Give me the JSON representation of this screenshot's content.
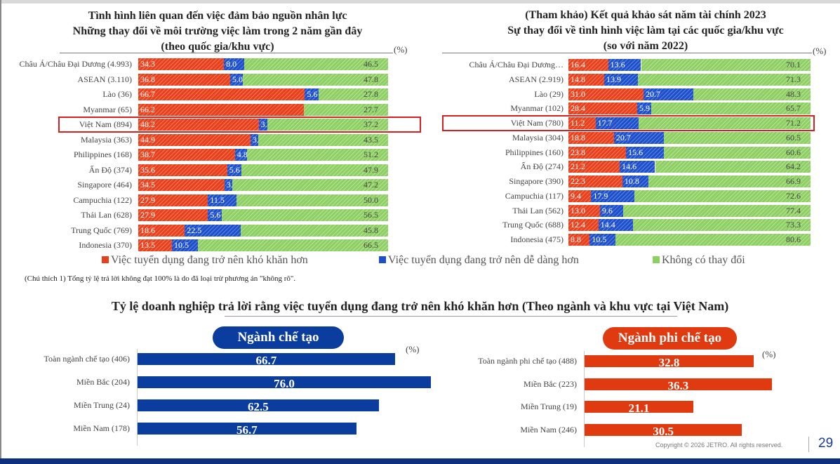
{
  "colors": {
    "hard": "#e8401c",
    "easy": "#1c4fc9",
    "nochange": "#8dcf62",
    "manufacturing": "#0b3d9e",
    "non_manufacturing": "#e03a10",
    "highlight": "#d62020"
  },
  "legend": [
    "Việc tuyển dụng đang trở nên khó khăn hơn",
    "Việc tuyển dụng đang trở nên dễ dàng hơn",
    "Không có thay đổi"
  ],
  "note": "(Chú thích 1) Tổng tỷ lệ trả lời không đạt 100% là do đã loại trừ phương án \"không rõ\".",
  "bottom_title": "Tỷ lệ doanh nghiệp trả lời rằng việc tuyển dụng đang trở nên khó khăn hơn (Theo ngành và khu vực tại Việt Nam)",
  "footer": {
    "copyright": "Copyright © 2026 JETRO. All rights reserved.",
    "page": "29"
  },
  "chart_data": [
    {
      "type": "bar",
      "stacked": true,
      "orientation": "horizontal",
      "unit": "(%)",
      "title": [
        "Tình hình liên quan đến việc đảm bảo nguồn nhân lực",
        "Những thay đổi về môi trường việc làm trong 2 năm gần đây",
        "(theo quốc gia/khu vực)"
      ],
      "highlight": "Việt Nam (894)",
      "categories": [
        "Châu Á/Châu Đại Dương (4.993)",
        "ASEAN (3.110)",
        "Lào (36)",
        "Myanmar (65)",
        "Việt Nam (894)",
        "Malaysia (363)",
        "Philippines (168)",
        "Ấn Độ (374)",
        "Singapore (464)",
        "Campuchia (122)",
        "Thái Lan (628)",
        "Trung Quốc (769)",
        "Indonesia (370)"
      ],
      "series": [
        {
          "name": "Việc tuyển dụng đang trở nên khó khăn hơn",
          "values": [
            34.3,
            36.8,
            66.7,
            66.2,
            48.2,
            44.9,
            38.7,
            35.6,
            34.5,
            27.9,
            27.9,
            18.6,
            13.5
          ]
        },
        {
          "name": "Việc tuyển dụng đang trở nên dễ dàng hơn",
          "values": [
            8.0,
            5.0,
            5.6,
            null,
            3.6,
            3.0,
            4.8,
            5.6,
            3.2,
            11.5,
            5.6,
            22.5,
            10.5
          ]
        },
        {
          "name": "Không có thay đổi",
          "values": [
            46.5,
            47.8,
            27.8,
            27.7,
            37.2,
            43.5,
            51.2,
            47.9,
            47.2,
            50.0,
            56.5,
            45.8,
            66.5
          ]
        }
      ]
    },
    {
      "type": "bar",
      "stacked": true,
      "orientation": "horizontal",
      "unit": "(%)",
      "title": [
        "(Tham khảo) Kết quả khảo sát năm tài chính 2023",
        "Sự thay đổi về tình hình việc làm tại các quốc gia/khu vực",
        "(so với năm 2022)"
      ],
      "highlight": "Việt Nam (780)",
      "categories": [
        "Châu Á/Châu Đại Dương…",
        "ASEAN (2.919)",
        "Lào (29)",
        "Myanmar (102)",
        "Việt Nam (780)",
        "Malaysia (304)",
        "Philippines (160)",
        "Ấn Độ (274)",
        "Singapore (390)",
        "Campuchia (117)",
        "Thái Lan (562)",
        "Trung Quốc (688)",
        "Indonesia (475)"
      ],
      "series": [
        {
          "name": "Việc tuyển dụng đang trở nên khó khăn hơn",
          "values": [
            16.4,
            14.8,
            31.0,
            28.4,
            11.2,
            18.8,
            23.8,
            21.2,
            22.3,
            9.4,
            13.0,
            12.4,
            8.8
          ]
        },
        {
          "name": "Việc tuyển dụng đang trở nên dễ dàng hơn",
          "values": [
            13.6,
            13.9,
            20.7,
            5.9,
            17.7,
            20.7,
            15.6,
            14.6,
            10.8,
            17.9,
            9.6,
            14.4,
            10.5
          ]
        },
        {
          "name": "Không có thay đổi",
          "values": [
            70.1,
            71.3,
            48.3,
            65.7,
            71.2,
            60.5,
            60.6,
            64.2,
            66.9,
            72.6,
            77.4,
            73.3,
            80.6
          ]
        }
      ]
    },
    {
      "type": "bar",
      "orientation": "horizontal",
      "unit": "(%)",
      "title": "Ngành chế tạo",
      "categories": [
        "Toàn ngành chế tạo (406)",
        "Miền Bắc (204)",
        "Miền Trung (24)",
        "Miền Nam (178)"
      ],
      "values": [
        66.7,
        76.0,
        62.5,
        56.7
      ]
    },
    {
      "type": "bar",
      "orientation": "horizontal",
      "unit": "(%)",
      "title": "Ngành phi chế tạo",
      "categories": [
        "Toàn ngành phi chế tạo (488)",
        "Miền Bắc (223)",
        "Miền Trung (19)",
        "Miền Nam (246)"
      ],
      "values": [
        32.8,
        36.3,
        21.1,
        30.5
      ]
    }
  ]
}
